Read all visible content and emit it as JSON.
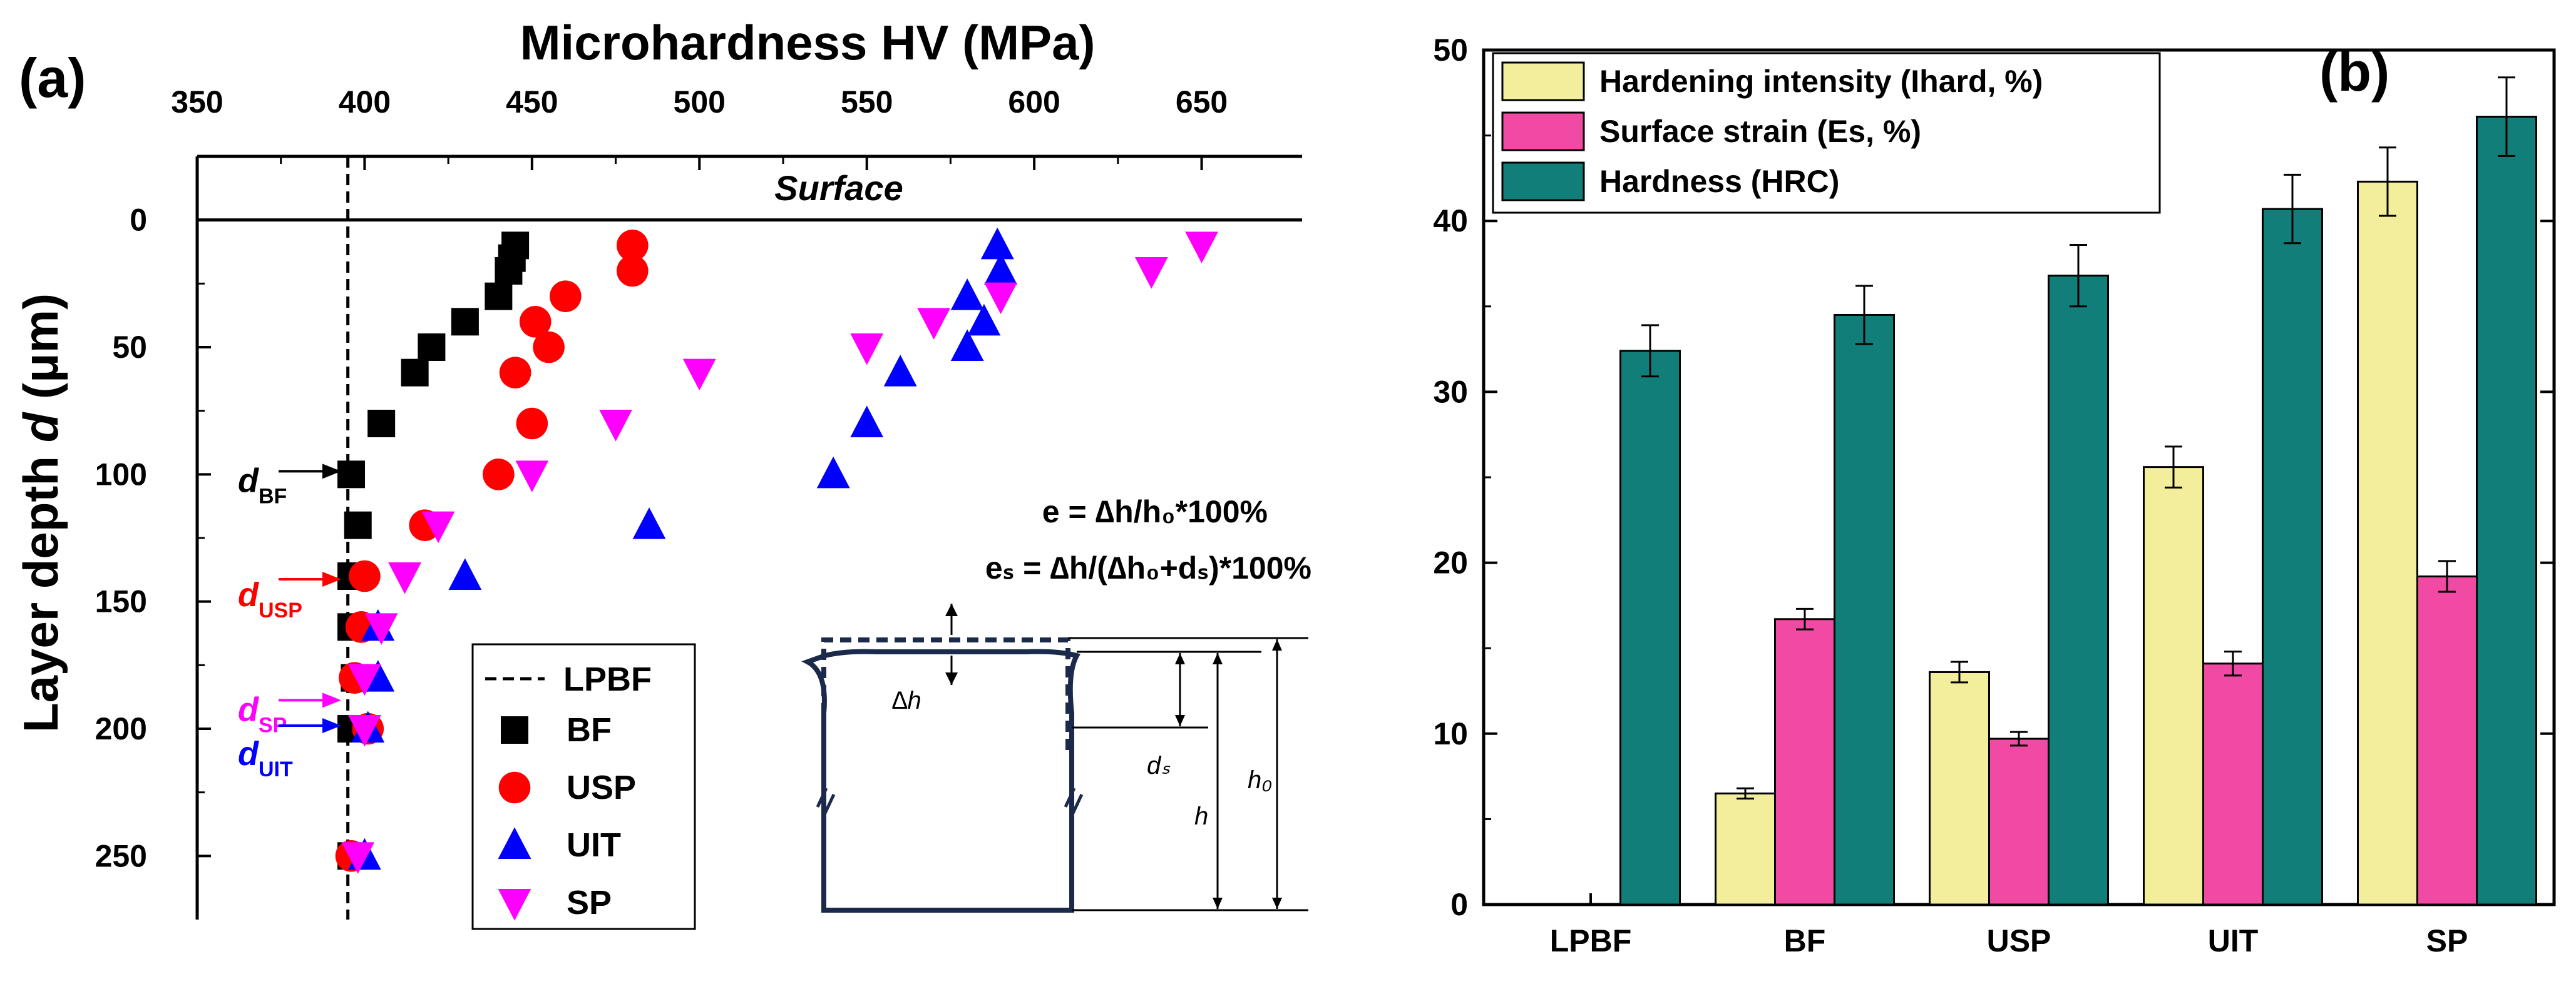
{
  "chart_data": [
    {
      "panel": "(a)",
      "type": "scatter",
      "title": "",
      "xlabel": "Microhardness HV (MPa)",
      "ylabel_prefix": "Layer depth ",
      "ylabel_var": "d",
      "ylabel_unit": " (μm)",
      "xlim": [
        350,
        680
      ],
      "ylim": [
        -25,
        275
      ],
      "xticks": [
        350,
        400,
        450,
        500,
        550,
        600,
        650
      ],
      "yticks": [
        0,
        50,
        100,
        150,
        200,
        250
      ],
      "surface_label": "Surface",
      "reference_line": {
        "name": "LPBF",
        "x": 395
      },
      "series": [
        {
          "name": "BF",
          "marker": "square",
          "color": "#000000",
          "points": [
            [
              445,
              10
            ],
            [
              444,
              15
            ],
            [
              443,
              20
            ],
            [
              440,
              30
            ],
            [
              430,
              40
            ],
            [
              420,
              50
            ],
            [
              415,
              60
            ],
            [
              405,
              80
            ],
            [
              396,
              100
            ],
            [
              398,
              120
            ],
            [
              396,
              140
            ],
            [
              396,
              160
            ],
            [
              397,
              180
            ],
            [
              396,
              200
            ],
            [
              396,
              250
            ]
          ]
        },
        {
          "name": "USP",
          "marker": "circle",
          "color": "#ff0000",
          "points": [
            [
              480,
              10
            ],
            [
              480,
              20
            ],
            [
              460,
              30
            ],
            [
              451,
              40
            ],
            [
              455,
              50
            ],
            [
              445,
              60
            ],
            [
              450,
              80
            ],
            [
              440,
              100
            ],
            [
              418,
              120
            ],
            [
              400,
              140
            ],
            [
              399,
              160
            ],
            [
              397,
              180
            ],
            [
              401,
              200
            ],
            [
              396,
              250
            ]
          ]
        },
        {
          "name": "UIT",
          "marker": "triangle-up",
          "color": "#0000ff",
          "points": [
            [
              589,
              10
            ],
            [
              590,
              20
            ],
            [
              580,
              30
            ],
            [
              585,
              40
            ],
            [
              580,
              50
            ],
            [
              560,
              60
            ],
            [
              550,
              80
            ],
            [
              540,
              100
            ],
            [
              485,
              120
            ],
            [
              430,
              140
            ],
            [
              404,
              160
            ],
            [
              404,
              180
            ],
            [
              401,
              200
            ],
            [
              400,
              250
            ]
          ]
        },
        {
          "name": "SP",
          "marker": "triangle-down",
          "color": "#ff00ff",
          "points": [
            [
              650,
              10
            ],
            [
              635,
              20
            ],
            [
              590,
              30
            ],
            [
              570,
              40
            ],
            [
              550,
              50
            ],
            [
              500,
              60
            ],
            [
              475,
              80
            ],
            [
              450,
              100
            ],
            [
              422,
              120
            ],
            [
              412,
              140
            ],
            [
              405,
              160
            ],
            [
              400,
              180
            ],
            [
              400,
              200
            ],
            [
              398,
              250
            ]
          ]
        }
      ],
      "depth_markers": [
        {
          "label": "d",
          "sub": "BF",
          "color": "#000000",
          "depth": 100
        },
        {
          "label": "d",
          "sub": "USP",
          "color": "#ff0000",
          "depth": 140
        },
        {
          "label": "d",
          "sub": "SP",
          "color": "#ff00ff",
          "depth": 190
        },
        {
          "label": "d",
          "sub": "UIT",
          "color": "#0000ff",
          "depth": 200
        }
      ],
      "equations": [
        "e = ∆h/h₀*100%",
        "eₛ = ∆h/(∆h₀+dₛ)*100%"
      ],
      "schematic_labels": {
        "dh": "∆h",
        "ds": "dₛ",
        "h": "h",
        "h0": "h₀"
      }
    },
    {
      "panel": "(b)",
      "type": "bar",
      "title": "",
      "xlabel": "",
      "ylabel": "",
      "categories": [
        "LPBF",
        "BF",
        "USP",
        "UIT",
        "SP"
      ],
      "ylim": [
        0,
        50
      ],
      "yticks": [
        0,
        10,
        20,
        30,
        40,
        50
      ],
      "series": [
        {
          "name": "Hardening intensity (Ihard, %)",
          "color": "#f3ee9c",
          "values": [
            0,
            6.5,
            13.6,
            25.6,
            42.3
          ],
          "errors": [
            0,
            0.3,
            0.6,
            1.2,
            2.0
          ]
        },
        {
          "name": "Surface strain (Es, %)",
          "color": "#f04aa4",
          "values": [
            0,
            16.7,
            9.7,
            14.1,
            19.2
          ],
          "errors": [
            0,
            0.6,
            0.4,
            0.7,
            0.9
          ]
        },
        {
          "name": "Hardness (HRC)",
          "color": "#127e79",
          "values": [
            32.4,
            34.5,
            36.8,
            40.7,
            46.1
          ],
          "errors": [
            1.5,
            1.7,
            1.8,
            2.0,
            2.3
          ]
        }
      ]
    }
  ]
}
